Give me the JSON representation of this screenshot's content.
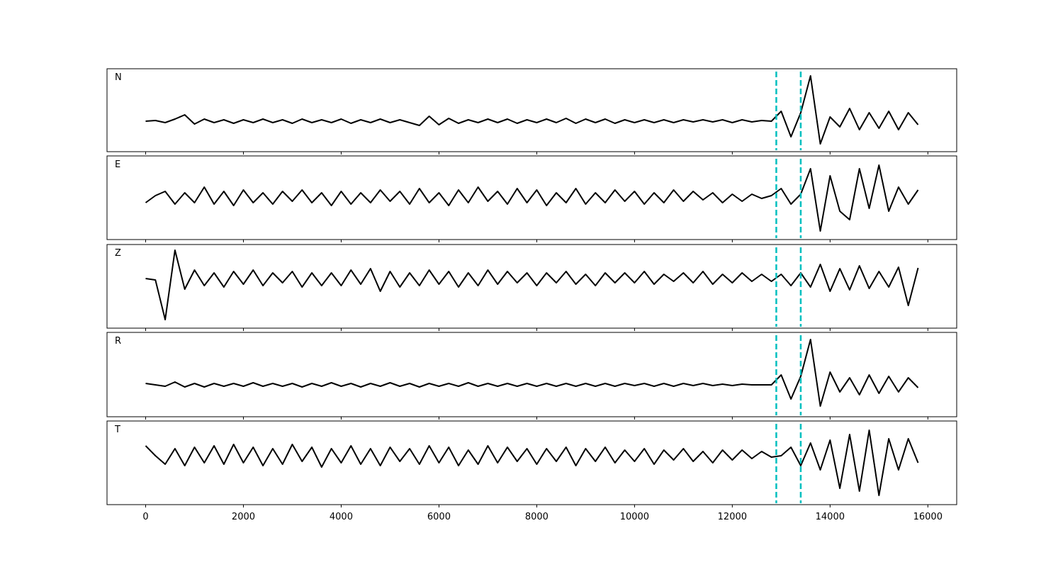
{
  "chart_data": {
    "type": "line",
    "x": [
      0,
      200,
      400,
      600,
      800,
      1000,
      1200,
      1400,
      1600,
      1800,
      2000,
      2200,
      2400,
      2600,
      2800,
      3000,
      3200,
      3400,
      3600,
      3800,
      4000,
      4200,
      4400,
      4600,
      4800,
      5000,
      5200,
      5400,
      5600,
      5800,
      6000,
      6200,
      6400,
      6600,
      6800,
      7000,
      7200,
      7400,
      7600,
      7800,
      8000,
      8200,
      8400,
      8600,
      8800,
      9000,
      9200,
      9400,
      9600,
      9800,
      10000,
      10200,
      10400,
      10600,
      10800,
      11000,
      11200,
      11400,
      11600,
      11800,
      12000,
      12200,
      12400,
      12600,
      12800,
      13000,
      13200,
      13400,
      13600,
      13800,
      14000,
      14200,
      14400,
      14600,
      14800,
      15000,
      15200,
      15400,
      15600,
      15800
    ],
    "xlim": [
      -790,
      16590
    ],
    "xticks": [
      0,
      2000,
      4000,
      6000,
      8000,
      10000,
      12000,
      14000,
      16000
    ],
    "vlines": [
      12900,
      13400
    ],
    "vline_color": "#00bfbf",
    "line_color": "#000000",
    "series": [
      {
        "name": "N",
        "ylim": [
          -43,
          74
        ],
        "values": [
          0,
          1,
          -2,
          3,
          9,
          -4,
          3,
          -2,
          2,
          -3,
          2,
          -2,
          3,
          -2,
          2,
          -3,
          3,
          -2,
          2,
          -2,
          3,
          -3,
          2,
          -2,
          3,
          -2,
          2,
          -2,
          -6,
          7,
          -5,
          4,
          -3,
          2,
          -2,
          3,
          -2,
          3,
          -3,
          2,
          -2,
          3,
          -2,
          4,
          -3,
          3,
          -2,
          3,
          -3,
          2,
          -2,
          2,
          -2,
          2,
          -2,
          2,
          -1,
          2,
          -1,
          2,
          -2,
          2,
          -1,
          1,
          0,
          14,
          -22,
          12,
          64,
          -32,
          6,
          -8,
          18,
          -12,
          12,
          -10,
          14,
          -12,
          12,
          -5
        ]
      },
      {
        "name": "E",
        "ylim": [
          -60,
          58
        ],
        "values": [
          -8,
          2,
          8,
          -10,
          6,
          -8,
          14,
          -10,
          8,
          -12,
          10,
          -8,
          6,
          -10,
          8,
          -6,
          10,
          -8,
          6,
          -12,
          8,
          -10,
          6,
          -8,
          10,
          -6,
          8,
          -10,
          12,
          -8,
          6,
          -12,
          10,
          -8,
          14,
          -6,
          8,
          -10,
          12,
          -8,
          10,
          -12,
          6,
          -8,
          12,
          -10,
          6,
          -8,
          10,
          -6,
          8,
          -10,
          6,
          -8,
          10,
          -6,
          8,
          -4,
          6,
          -8,
          4,
          -6,
          4,
          -2,
          2,
          12,
          -10,
          4,
          40,
          -48,
          30,
          -20,
          -32,
          40,
          -16,
          45,
          -20,
          14,
          -10,
          10
        ]
      },
      {
        "name": "Z",
        "ylim": [
          -70,
          48
        ],
        "values": [
          0,
          -2,
          -58,
          40,
          -15,
          12,
          -10,
          8,
          -12,
          10,
          -8,
          12,
          -10,
          8,
          -6,
          10,
          -12,
          8,
          -10,
          8,
          -10,
          12,
          -8,
          14,
          -18,
          10,
          -12,
          8,
          -10,
          12,
          -8,
          10,
          -12,
          8,
          -10,
          12,
          -8,
          10,
          -6,
          8,
          -10,
          8,
          -6,
          10,
          -8,
          6,
          -10,
          8,
          -6,
          8,
          -6,
          10,
          -8,
          6,
          -4,
          8,
          -6,
          10,
          -8,
          6,
          -6,
          8,
          -4,
          6,
          -4,
          6,
          -10,
          8,
          -12,
          20,
          -18,
          14,
          -16,
          18,
          -14,
          10,
          -12,
          16,
          -38,
          15
        ]
      },
      {
        "name": "R",
        "ylim": [
          -45,
          74
        ],
        "values": [
          2,
          0,
          -2,
          4,
          -3,
          2,
          -3,
          2,
          -2,
          2,
          -2,
          3,
          -2,
          2,
          -2,
          2,
          -3,
          2,
          -2,
          3,
          -2,
          2,
          -3,
          2,
          -2,
          3,
          -2,
          2,
          -3,
          2,
          -2,
          2,
          -2,
          3,
          -2,
          2,
          -2,
          2,
          -2,
          2,
          -2,
          2,
          -2,
          2,
          -2,
          2,
          -2,
          2,
          -2,
          2,
          -1,
          2,
          -2,
          2,
          -2,
          2,
          -1,
          2,
          -1,
          1,
          -1,
          1,
          0,
          0,
          0,
          14,
          -20,
          12,
          64,
          -30,
          18,
          -10,
          10,
          -14,
          14,
          -12,
          12,
          -10,
          10,
          -4
        ]
      },
      {
        "name": "T",
        "ylim": [
          -69,
          49
        ],
        "values": [
          14,
          0,
          -12,
          10,
          -14,
          12,
          -10,
          14,
          -12,
          16,
          -10,
          12,
          -14,
          10,
          -12,
          16,
          -8,
          12,
          -16,
          10,
          -10,
          14,
          -12,
          10,
          -14,
          12,
          -8,
          10,
          -12,
          14,
          -10,
          12,
          -14,
          8,
          -12,
          14,
          -10,
          12,
          -8,
          10,
          -12,
          10,
          -8,
          12,
          -14,
          10,
          -8,
          12,
          -10,
          8,
          -8,
          10,
          -12,
          8,
          -6,
          10,
          -8,
          6,
          -10,
          8,
          -6,
          8,
          -4,
          6,
          -2,
          0,
          12,
          -14,
          18,
          -20,
          22,
          -46,
          30,
          -50,
          36,
          -56,
          24,
          -20,
          24,
          -10
        ]
      }
    ]
  }
}
